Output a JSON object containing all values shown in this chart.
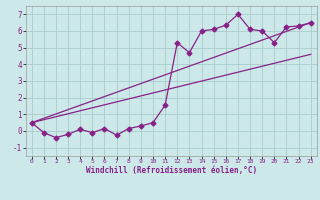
{
  "xlabel": "Windchill (Refroidissement éolien,°C)",
  "background_color": "#cce8e8",
  "grid_color": "#aacccc",
  "line_color": "#882288",
  "xlim": [
    -0.5,
    23.5
  ],
  "ylim": [
    -1.5,
    7.5
  ],
  "xticks": [
    0,
    1,
    2,
    3,
    4,
    5,
    6,
    7,
    8,
    9,
    10,
    11,
    12,
    13,
    14,
    15,
    16,
    17,
    18,
    19,
    20,
    21,
    22,
    23
  ],
  "yticks": [
    -1,
    0,
    1,
    2,
    3,
    4,
    5,
    6,
    7
  ],
  "line1_x": [
    0,
    1,
    2,
    3,
    4,
    5,
    6,
    7,
    8,
    9,
    10,
    11,
    12,
    13,
    14,
    15,
    16,
    17,
    18,
    19,
    20,
    21,
    22,
    23
  ],
  "line1_y": [
    0.5,
    -0.1,
    -0.4,
    -0.2,
    0.1,
    -0.1,
    0.15,
    -0.25,
    0.15,
    0.3,
    0.5,
    1.55,
    5.3,
    4.7,
    6.0,
    6.1,
    6.35,
    7.0,
    6.1,
    6.0,
    5.3,
    6.25,
    6.3,
    6.5
  ],
  "line2_x": [
    0,
    23
  ],
  "line2_y": [
    0.5,
    4.6
  ],
  "line3_x": [
    0,
    23
  ],
  "line3_y": [
    0.5,
    6.5
  ],
  "marker": "D",
  "markersize": 2.5,
  "linewidth": 0.9
}
